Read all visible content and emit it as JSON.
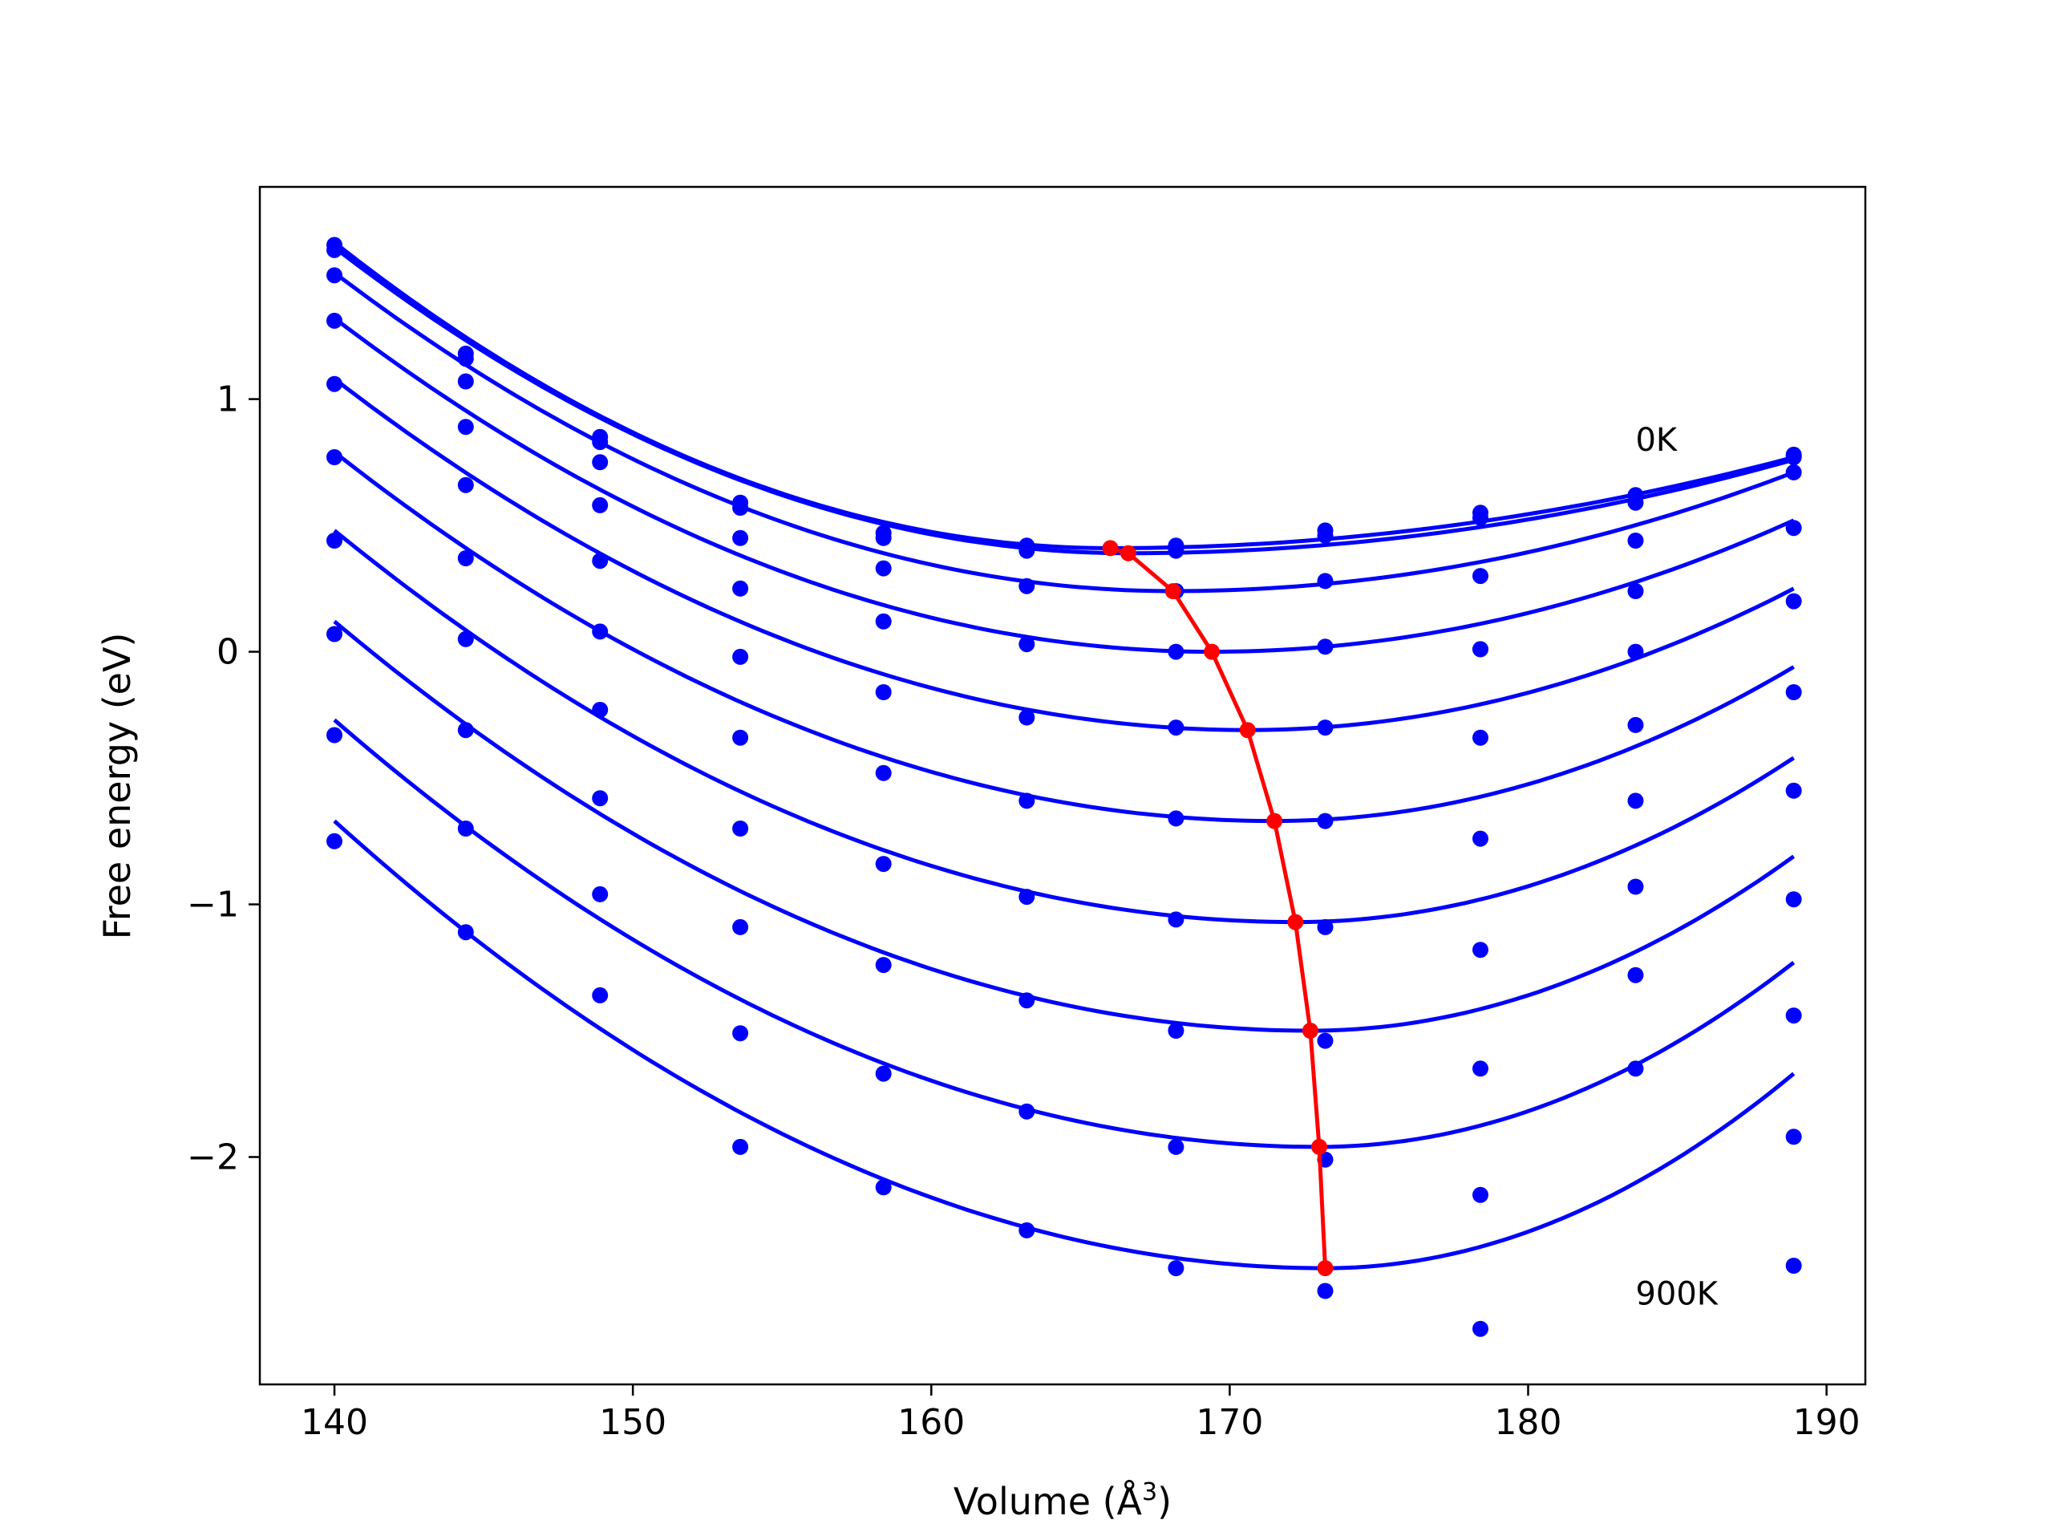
{
  "chart_data": {
    "type": "scatter",
    "xlabel": "Volume (Å",
    "xlabel_sup": "3",
    "xlabel_close": ")",
    "ylabel": "Free energy (eV)",
    "xlim": [
      137.5,
      191.3
    ],
    "ylim": [
      -2.9,
      1.84
    ],
    "x_ticks": [
      140,
      150,
      160,
      170,
      180,
      190
    ],
    "x_tick_labels": [
      "140",
      "150",
      "160",
      "170",
      "180",
      "190"
    ],
    "y_ticks": [
      -2,
      -1,
      0,
      1
    ],
    "y_tick_labels": [
      "−2",
      "−1",
      "0",
      "1"
    ],
    "annotations": [
      {
        "text": "0K",
        "x": 183.6,
        "y": 0.84
      },
      {
        "text": "900K",
        "x": 183.6,
        "y": -2.54
      }
    ],
    "colors": {
      "fit": "#0000ff",
      "points": "#0000ff",
      "minima": "#ff0000"
    },
    "volumes": [
      140.0,
      144.4,
      148.9,
      153.6,
      158.4,
      163.2,
      168.2,
      173.2,
      178.4,
      183.6,
      188.9
    ],
    "series": [
      {
        "values": [
          1.61,
          1.18,
          0.85,
          0.59,
          0.47,
          0.42,
          0.42,
          0.48,
          0.55,
          0.62,
          0.78
        ],
        "fit": [
          140,
          188.9,
          1.62,
          0.41,
          166.0,
          0.77
        ]
      },
      {
        "values": [
          1.59,
          1.16,
          0.83,
          0.57,
          0.45,
          0.4,
          0.4,
          0.46,
          0.53,
          0.59,
          0.77
        ],
        "fit": [
          140,
          188.9,
          1.6,
          0.39,
          166.6,
          0.76
        ]
      },
      {
        "values": [
          1.49,
          1.07,
          0.75,
          0.45,
          0.33,
          0.26,
          0.24,
          0.28,
          0.3,
          0.44,
          0.71
        ],
        "fit": [
          140,
          188.9,
          1.5,
          0.24,
          168.1,
          0.71
        ]
      },
      {
        "values": [
          1.31,
          0.89,
          0.58,
          0.25,
          0.12,
          0.03,
          0.0,
          0.02,
          0.01,
          0.24,
          0.49
        ],
        "fit": [
          140,
          188.9,
          1.32,
          0.0,
          169.4,
          0.52
        ]
      },
      {
        "values": [
          1.06,
          0.66,
          0.36,
          -0.02,
          -0.16,
          -0.26,
          -0.3,
          -0.3,
          0.01,
          0.0,
          0.2
        ],
        "fit": [
          140,
          188.9,
          1.08,
          -0.31,
          170.6,
          0.25
        ]
      },
      {
        "values": [
          0.77,
          0.37,
          0.08,
          -0.34,
          -0.48,
          -0.59,
          -0.66,
          -0.67,
          -0.34,
          -0.29,
          -0.16
        ],
        "fit": [
          140,
          188.9,
          0.79,
          -0.67,
          171.5,
          -0.06
        ]
      },
      {
        "values": [
          0.44,
          0.05,
          -0.23,
          -0.7,
          -0.84,
          -0.97,
          -1.06,
          -1.09,
          -0.74,
          -0.59,
          -0.55
        ],
        "fit": [
          140,
          188.9,
          0.48,
          -1.07,
          172.2,
          -0.42
        ]
      },
      {
        "values": [
          0.07,
          -0.31,
          -0.58,
          -1.09,
          -1.24,
          -1.38,
          -1.5,
          -1.54,
          -1.18,
          -0.93,
          -0.98
        ],
        "fit": [
          140,
          188.9,
          0.12,
          -1.5,
          172.7,
          -0.81
        ]
      },
      {
        "values": [
          -0.33,
          -0.7,
          -0.96,
          -1.51,
          -1.67,
          -1.82,
          -1.96,
          -2.01,
          -1.65,
          -1.28,
          -1.44
        ],
        "fit": [
          140,
          188.9,
          -0.27,
          -1.96,
          173.0,
          -1.23
        ]
      },
      {
        "values": [
          -0.75,
          -1.11,
          -1.36,
          -1.96,
          -2.12,
          -2.29,
          -2.44,
          -2.53,
          -2.15,
          -1.65,
          -1.92
        ],
        "fit": [
          140,
          188.9,
          -0.67,
          -2.44,
          173.2,
          -1.67
        ]
      },
      {
        "values": [
          null,
          null,
          null,
          null,
          null,
          null,
          null,
          null,
          -2.68,
          null,
          -2.43
        ],
        "fit": null
      }
    ],
    "minima_curve": {
      "x": [
        166.0,
        166.6,
        168.1,
        169.4,
        170.6,
        171.5,
        172.2,
        172.7,
        173.0,
        173.2
      ],
      "y": [
        0.41,
        0.39,
        0.24,
        0.0,
        -0.31,
        -0.67,
        -1.07,
        -1.5,
        -1.96,
        -2.44
      ]
    }
  }
}
